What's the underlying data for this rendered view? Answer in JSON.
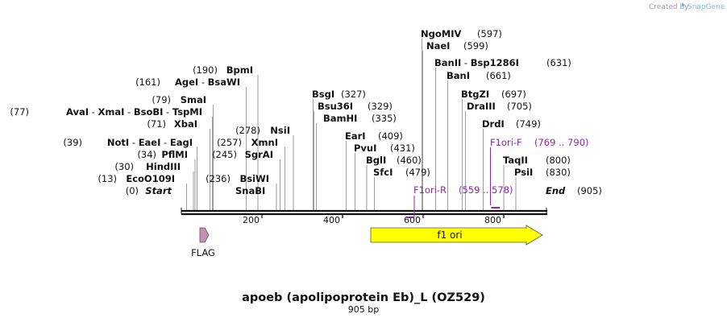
{
  "credit": {
    "text": "Created by",
    "brand": "SnapGene"
  },
  "title": "apoeb (apolipoprotein Eb)_L (OZ529)",
  "subtitle": "905 bp",
  "total_bp": 905,
  "ticks": [
    "200",
    "400",
    "600",
    "800"
  ],
  "sites": [
    {
      "names": [
        "NgoMIV"
      ],
      "pos": "(597)",
      "bp": 597
    },
    {
      "names": [
        "NaeI"
      ],
      "pos": "(599)",
      "bp": 599
    },
    {
      "names": [
        "BanII",
        "Bsp1286I"
      ],
      "pos": "(631)",
      "bp": 631
    },
    {
      "names": [
        "BanI"
      ],
      "pos": "(661)",
      "bp": 661
    },
    {
      "names": [
        "BtgZI"
      ],
      "pos": "(697)",
      "bp": 697
    },
    {
      "names": [
        "DraIII"
      ],
      "pos": "(705)",
      "bp": 705
    },
    {
      "names": [
        "DrdI"
      ],
      "pos": "(749)",
      "bp": 749
    },
    {
      "names": [
        "TaqII"
      ],
      "pos": "(800)",
      "bp": 800
    },
    {
      "names": [
        "PsiI"
      ],
      "pos": "(830)",
      "bp": 830
    },
    {
      "names": [
        "End"
      ],
      "pos": "(905)",
      "bp": 905,
      "italic": true
    },
    {
      "names": [
        "BsgI"
      ],
      "pos": "(327)",
      "bp": 327
    },
    {
      "names": [
        "Bsu36I"
      ],
      "pos": "(329)",
      "bp": 329
    },
    {
      "names": [
        "BamHI"
      ],
      "pos": "(335)",
      "bp": 335
    },
    {
      "names": [
        "EarI"
      ],
      "pos": "(409)",
      "bp": 409
    },
    {
      "names": [
        "PvuI"
      ],
      "pos": "(431)",
      "bp": 431
    },
    {
      "names": [
        "BglI"
      ],
      "pos": "(460)",
      "bp": 460
    },
    {
      "names": [
        "SfcI"
      ],
      "pos": "(479)",
      "bp": 479
    },
    {
      "names": [
        "BpmI"
      ],
      "pos": "(190)",
      "bp": 190
    },
    {
      "names": [
        "AgeI",
        "BsaWI"
      ],
      "pos": "(161)",
      "bp": 161
    },
    {
      "names": [
        "SmaI"
      ],
      "pos": "(79)",
      "bp": 79
    },
    {
      "names": [
        "AvaI",
        "XmaI",
        "BsoBI",
        "TspMI"
      ],
      "pos": "(77)",
      "bp": 77
    },
    {
      "names": [
        "XbaI"
      ],
      "pos": "(71)",
      "bp": 71
    },
    {
      "names": [
        "NotI",
        "EaeI",
        "EagI"
      ],
      "pos": "(39)",
      "bp": 39
    },
    {
      "names": [
        "PflMI"
      ],
      "pos": "(34)",
      "bp": 34
    },
    {
      "names": [
        "HindIII"
      ],
      "pos": "(30)",
      "bp": 30
    },
    {
      "names": [
        "EcoO109I"
      ],
      "pos": "(13)",
      "bp": 13
    },
    {
      "names": [
        "Start"
      ],
      "pos": "(0)",
      "bp": 0,
      "italic": true
    },
    {
      "names": [
        "NsiI"
      ],
      "pos": "(278)",
      "bp": 278
    },
    {
      "names": [
        "XmnI"
      ],
      "pos": "(257)",
      "bp": 257
    },
    {
      "names": [
        "SgrAI"
      ],
      "pos": "(245)",
      "bp": 245
    },
    {
      "names": [
        "BsiWI"
      ],
      "pos": "(236)",
      "bp": 236
    },
    {
      "names": [
        "SnaBI"
      ],
      "pos": "",
      "bp": 236
    }
  ],
  "primers": [
    {
      "name": "F1ori-F",
      "range": "(769 .. 790)",
      "start": 769,
      "end": 790,
      "direction": "forward"
    },
    {
      "name": "F1ori-R",
      "range": "(559 .. 578)",
      "start": 559,
      "end": 578,
      "direction": "reverse"
    }
  ],
  "features": [
    {
      "name": "f1 ori",
      "start": 470,
      "end": 896,
      "color": "#ffff00",
      "direction": "forward"
    },
    {
      "name": "FLAG",
      "start": 45,
      "end": 68,
      "color": "#c98fb0",
      "direction": "forward"
    }
  ]
}
